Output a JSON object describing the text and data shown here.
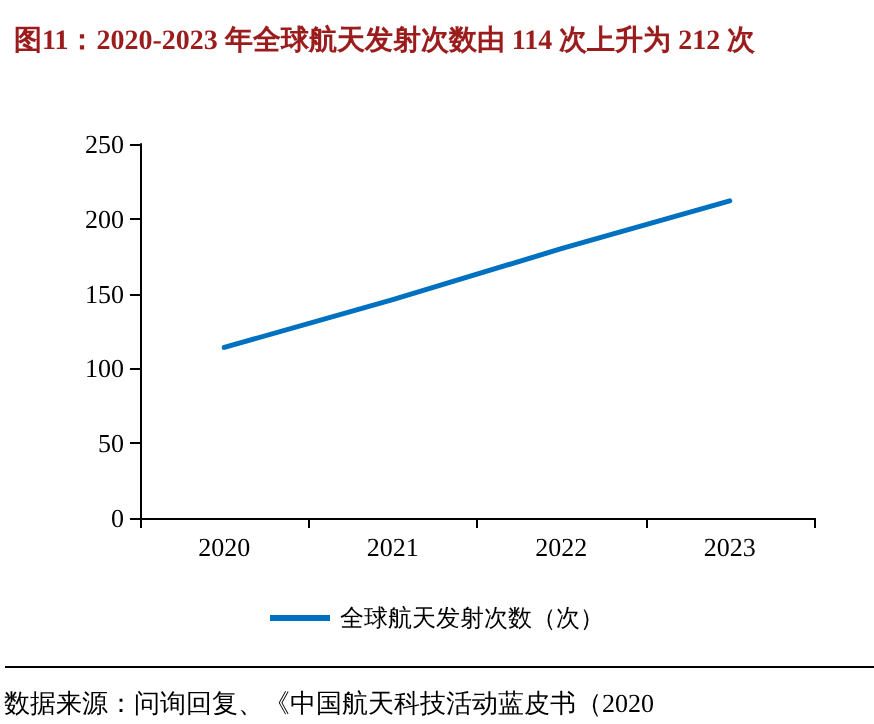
{
  "chart_data": {
    "type": "line",
    "title": "图11：2020-2023 年全球航天发射次数由 114 次上升为 212 次",
    "categories": [
      "2020",
      "2021",
      "2022",
      "2023"
    ],
    "series": [
      {
        "name": "全球航天发射次数（次）",
        "color": "#0070c0",
        "values": [
          114,
          146,
          180,
          212
        ]
      }
    ],
    "ylim": [
      0,
      250
    ],
    "yticks": [
      0,
      50,
      100,
      150,
      200,
      250
    ],
    "grid": false,
    "legend": "bottom",
    "marker": "none",
    "line_style": "solid",
    "annotations": [
      "数据来源：问询回复、《中国航天科技活动蓝皮书（2020"
    ]
  }
}
